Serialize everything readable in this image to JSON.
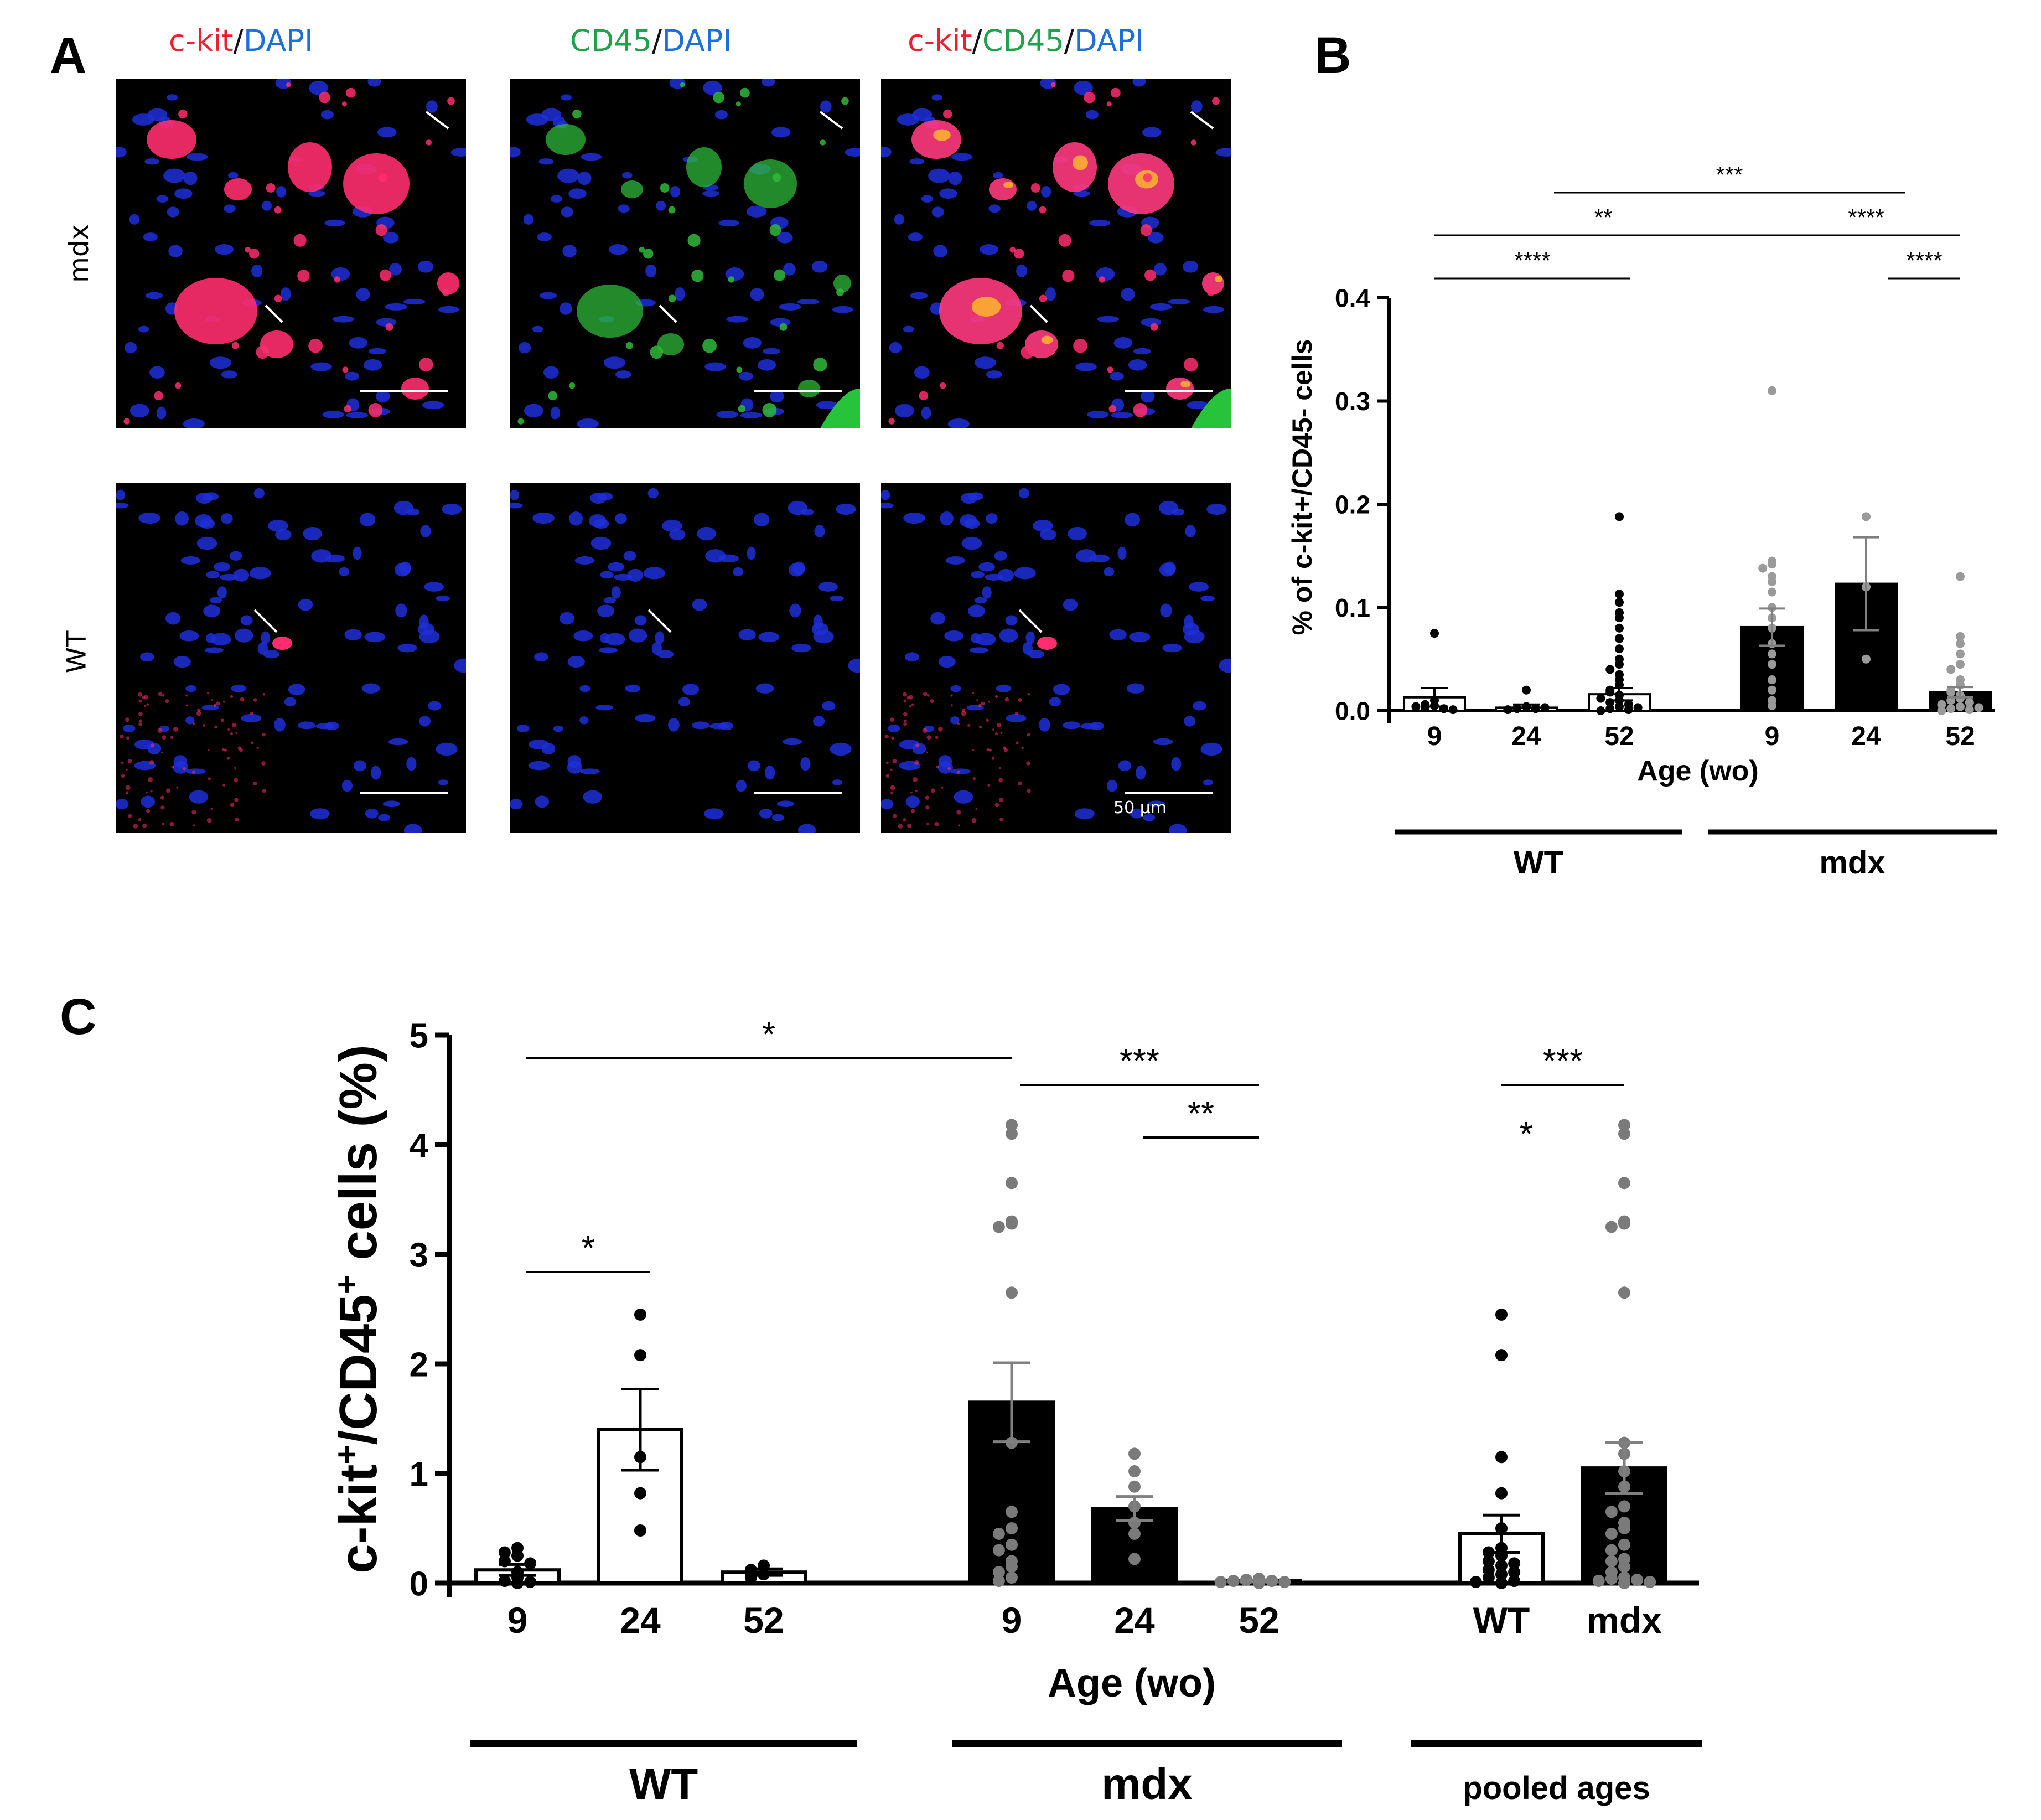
{
  "panels": {
    "a": "A",
    "b": "B",
    "c": "C"
  },
  "micrographs": {
    "headers": [
      [
        {
          "text": "c-kit",
          "color": "#e8212d"
        },
        {
          "text": "/",
          "color": "#111111"
        },
        {
          "text": "DAPI",
          "color": "#1e6fd9"
        }
      ],
      [
        {
          "text": "CD45",
          "color": "#1fa24a"
        },
        {
          "text": "/",
          "color": "#111111"
        },
        {
          "text": "DAPI",
          "color": "#1e6fd9"
        }
      ],
      [
        {
          "text": "c-kit",
          "color": "#e8212d"
        },
        {
          "text": "/",
          "color": "#111111"
        },
        {
          "text": "CD45",
          "color": "#1fa24a"
        },
        {
          "text": "/",
          "color": "#111111"
        },
        {
          "text": "DAPI",
          "color": "#1e6fd9"
        }
      ]
    ],
    "rows": [
      "mdx",
      "WT"
    ],
    "scale_bar_label": "50 µm"
  },
  "chart_data": [
    {
      "type": "bar",
      "panel": "B",
      "ylabel": "% of c-kit+/CD45- cells",
      "xlabel": "Age (wo)",
      "ylim": [
        0,
        0.4
      ],
      "yticks": [
        "0.0",
        "0.1",
        "0.2",
        "0.3",
        "0.4"
      ],
      "categories": [
        "9",
        "24",
        "52",
        "9",
        "24",
        "52"
      ],
      "groups": [
        "WT",
        "mdx"
      ],
      "means": [
        0.013,
        0.003,
        0.016,
        0.081,
        0.123,
        0.018
      ],
      "sem": [
        0.009,
        0.003,
        0.006,
        0.018,
        0.045,
        0.005
      ],
      "points": [
        [
          0.075,
          0.01,
          0.005,
          0.003,
          0.002,
          0.004,
          0.006,
          0.001
        ],
        [
          0.02,
          0.004,
          0.002,
          0.002,
          0.001,
          0.003
        ],
        [
          0.188,
          0.113,
          0.105,
          0.095,
          0.09,
          0.08,
          0.07,
          0.06,
          0.05,
          0.045,
          0.04,
          0.035,
          0.03,
          0.025,
          0.02,
          0.015,
          0.01,
          0.008,
          0.006,
          0.004,
          0.002,
          0.001,
          0.0,
          0.003,
          0.012,
          0.018
        ],
        [
          0.31,
          0.145,
          0.142,
          0.138,
          0.13,
          0.125,
          0.115,
          0.1,
          0.09,
          0.08,
          0.065,
          0.055,
          0.045,
          0.03,
          0.02,
          0.01,
          0.005
        ],
        [
          0.188,
          0.12,
          0.05
        ],
        [
          0.13,
          0.072,
          0.065,
          0.055,
          0.045,
          0.04,
          0.03,
          0.025,
          0.02,
          0.015,
          0.012,
          0.01,
          0.008,
          0.006,
          0.004,
          0.002,
          0.001,
          0.0,
          0.003,
          0.018
        ]
      ],
      "significance": [
        {
          "from": 0,
          "to": 2,
          "label": "****"
        },
        {
          "from": 0,
          "to": 3,
          "label": "**"
        },
        {
          "from": 1,
          "to": 4,
          "label": "***"
        },
        {
          "from": 3,
          "to": 5,
          "label": "****"
        },
        {
          "from": 4,
          "to": 5,
          "label": "****"
        }
      ]
    },
    {
      "type": "bar",
      "panel": "C",
      "ylabel_parts": [
        "c-kit",
        "+",
        "/CD45",
        "+",
        " cells (%)"
      ],
      "xlabel": "Age (wo)",
      "ylim": [
        0,
        5
      ],
      "yticks": [
        "0",
        "1",
        "2",
        "3",
        "4",
        "5"
      ],
      "categories": [
        "9",
        "24",
        "52",
        "9",
        "24",
        "52",
        "WT",
        "mdx"
      ],
      "groups": [
        "WT",
        "mdx",
        "pooled ages"
      ],
      "means": [
        0.12,
        1.4,
        0.1,
        1.65,
        0.68,
        0.02,
        0.45,
        1.05
      ],
      "sem": [
        0.05,
        0.37,
        0.03,
        0.36,
        0.11,
        0.01,
        0.17,
        0.23
      ],
      "points": [
        [
          0.32,
          0.28,
          0.25,
          0.2,
          0.18,
          0.1,
          0.05,
          0.02,
          0.01,
          0.0
        ],
        [
          2.45,
          2.08,
          1.15,
          0.82,
          0.48
        ],
        [
          0.16,
          0.12,
          0.08,
          0.05
        ],
        [
          4.18,
          4.1,
          3.65,
          3.3,
          3.28,
          3.25,
          2.65,
          1.28,
          0.65,
          0.5,
          0.45,
          0.35,
          0.3,
          0.2,
          0.15,
          0.1,
          0.05,
          0.02
        ],
        [
          1.18,
          1.02,
          0.88,
          0.7,
          0.55,
          0.45,
          0.22
        ],
        [
          0.04,
          0.03,
          0.02,
          0.02,
          0.01,
          0.01,
          0.0
        ],
        [
          2.45,
          2.08,
          1.15,
          0.82,
          0.5,
          0.32,
          0.28,
          0.25,
          0.2,
          0.18,
          0.16,
          0.12,
          0.1,
          0.08,
          0.05,
          0.02,
          0.01,
          0.0
        ],
        [
          4.18,
          4.1,
          3.65,
          3.3,
          3.28,
          3.25,
          2.65,
          1.28,
          1.18,
          1.02,
          0.88,
          0.7,
          0.65,
          0.55,
          0.5,
          0.45,
          0.35,
          0.3,
          0.22,
          0.2,
          0.15,
          0.1,
          0.05,
          0.04,
          0.03,
          0.02,
          0.01,
          0.0
        ]
      ],
      "significance": [
        {
          "from": 0,
          "to": 1,
          "label": "*"
        },
        {
          "from": 0,
          "to": 3,
          "label": "*"
        },
        {
          "from": 3,
          "to": 5,
          "label": "***"
        },
        {
          "from": 4,
          "to": 5,
          "label": "**"
        },
        {
          "from": 6,
          "to": 7,
          "label": "***"
        }
      ],
      "annotations": [
        {
          "category": 6,
          "label": "*"
        }
      ]
    }
  ]
}
